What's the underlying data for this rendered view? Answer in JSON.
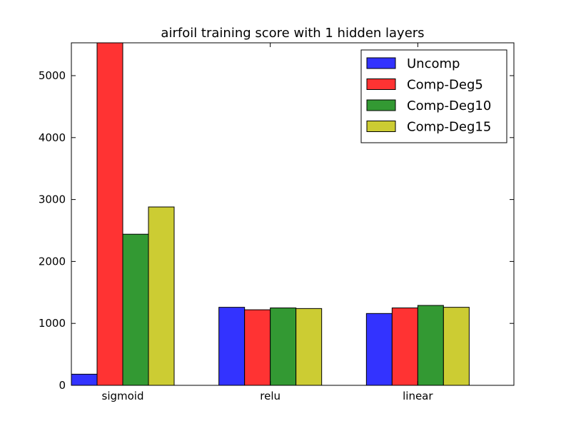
{
  "chart_data": {
    "type": "bar",
    "title": "airfoil training score with 1 hidden layers",
    "xlabel": "",
    "ylabel": "",
    "categories": [
      "sigmoid",
      "relu",
      "linear"
    ],
    "series": [
      {
        "name": "Uncomp",
        "color": "#3333ff",
        "values": [
          180,
          1260,
          1160
        ]
      },
      {
        "name": "Comp-Deg5",
        "color": "#ff3333",
        "values": [
          5530,
          1220,
          1250
        ]
      },
      {
        "name": "Comp-Deg10",
        "color": "#339933",
        "values": [
          2440,
          1250,
          1290
        ]
      },
      {
        "name": "Comp-Deg15",
        "color": "#cccc33",
        "values": [
          2880,
          1240,
          1260
        ]
      }
    ],
    "ylim": [
      0,
      5530
    ],
    "yticks": [
      0,
      1000,
      2000,
      3000,
      4000,
      5000
    ],
    "ytick_labels": [
      "0",
      "1000",
      "2000",
      "3000",
      "4000",
      "5000"
    ],
    "grid": false,
    "legend_position": "top-right",
    "bar_edge_color": "#000000"
  }
}
